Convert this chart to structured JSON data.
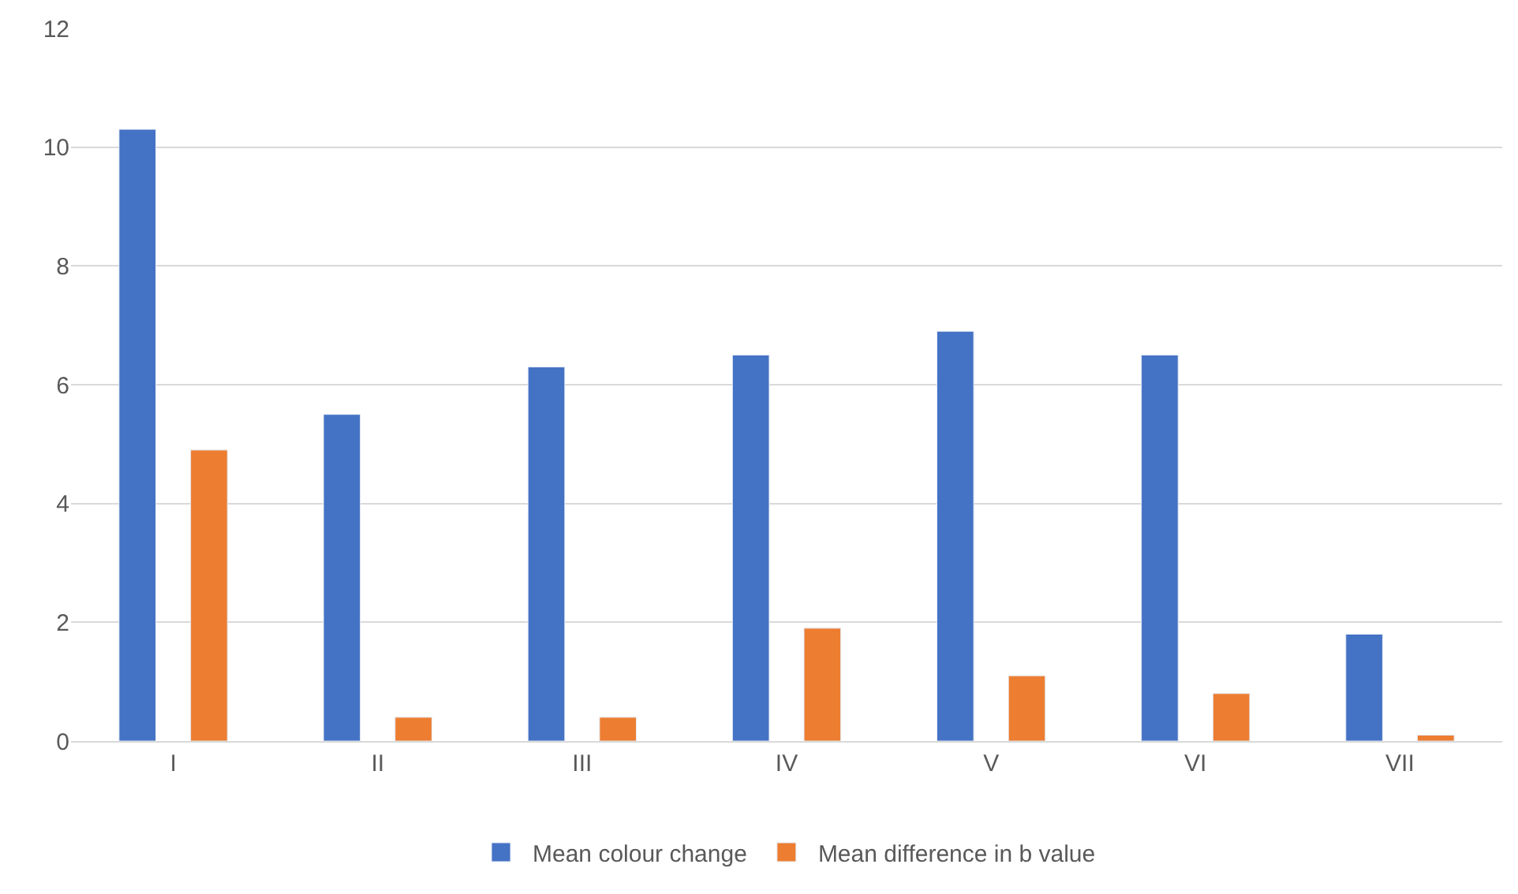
{
  "chart_data": {
    "type": "bar",
    "categories": [
      "I",
      "II",
      "III",
      "IV",
      "V",
      "VI",
      "VII"
    ],
    "series": [
      {
        "name": "Mean colour change",
        "color": "#4472c4",
        "values": [
          10.3,
          5.5,
          6.3,
          6.5,
          6.9,
          6.5,
          1.8
        ]
      },
      {
        "name": "Mean difference in b value",
        "color": "#ed7d31",
        "values": [
          4.9,
          0.4,
          0.4,
          1.9,
          1.1,
          0.8,
          0.1
        ]
      }
    ],
    "ylim": [
      0,
      12
    ],
    "yticks": [
      0,
      2,
      4,
      6,
      8,
      10,
      12
    ],
    "grid": "y",
    "legend": "bottom"
  }
}
